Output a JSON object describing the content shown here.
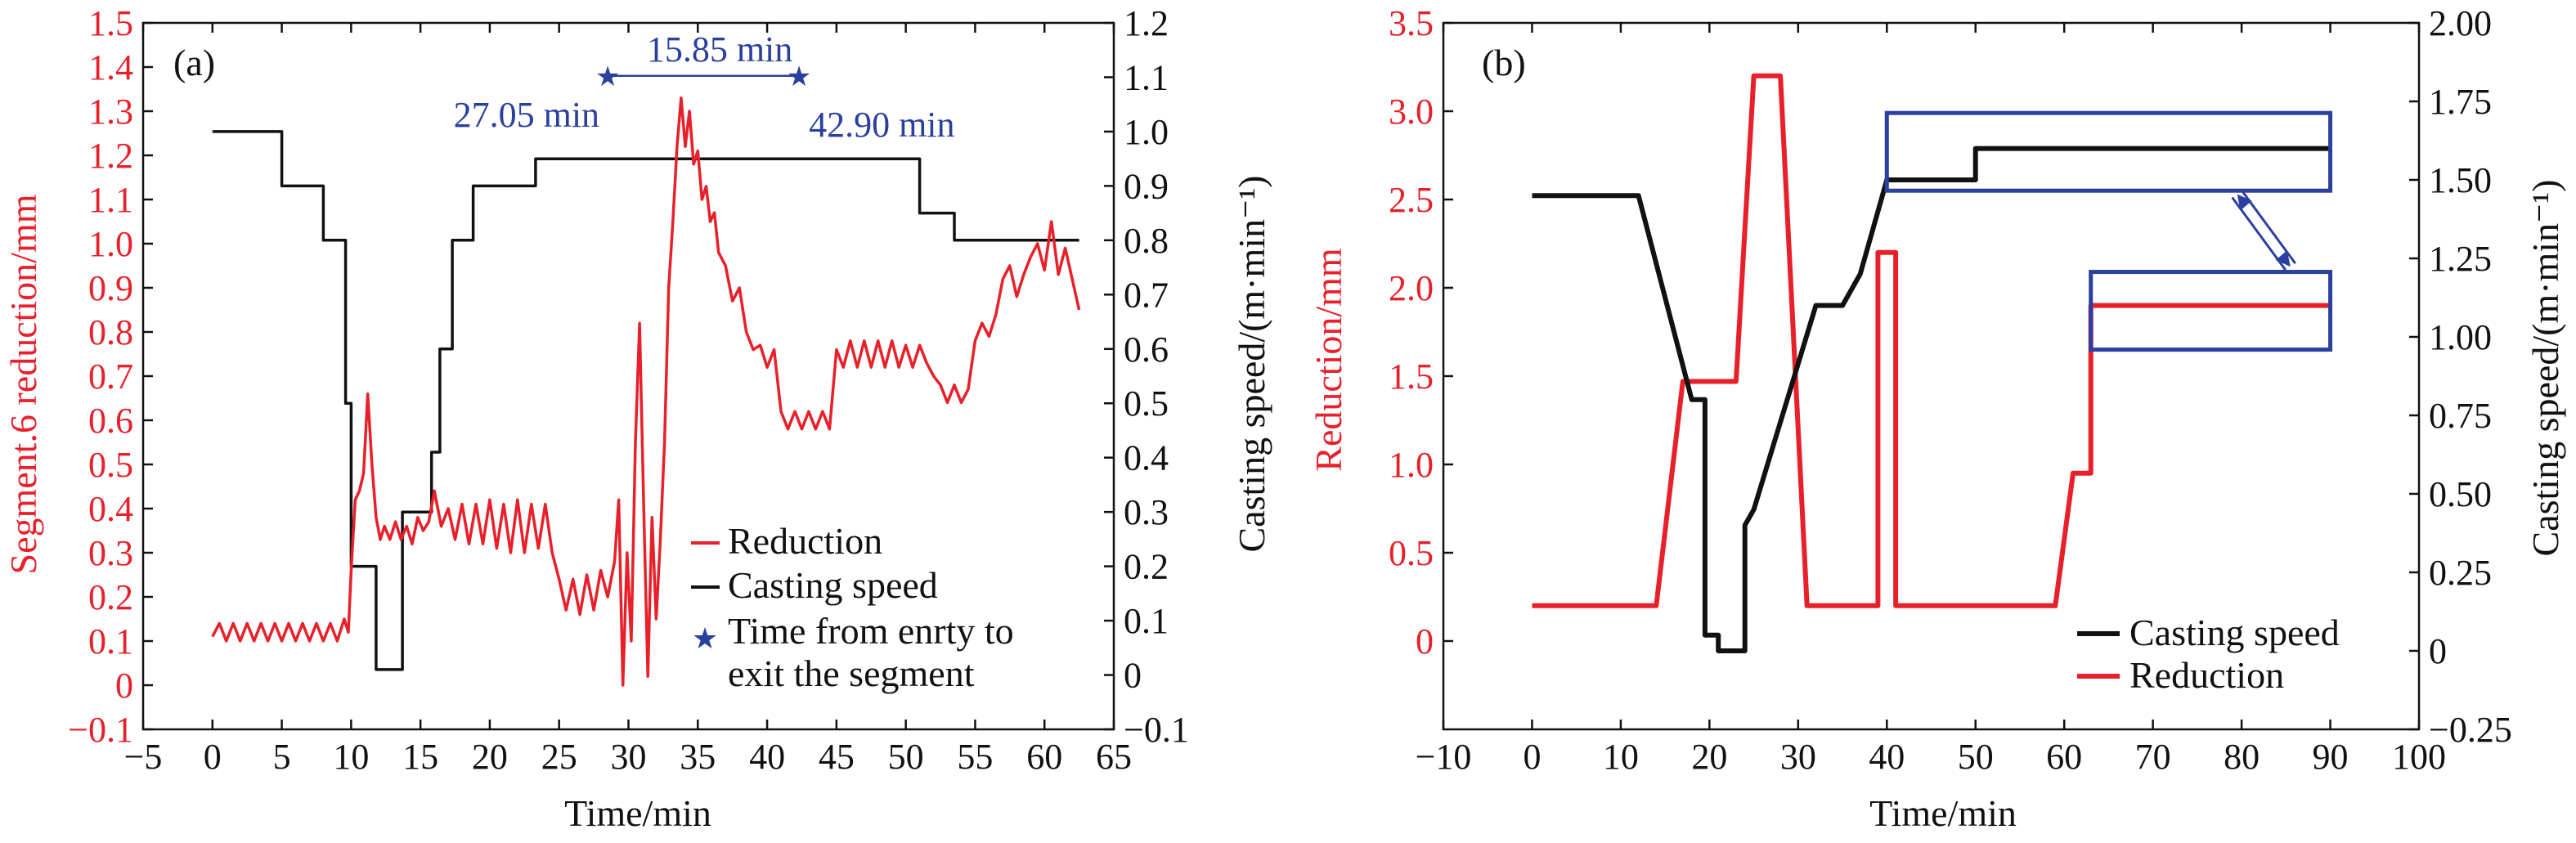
{
  "chart_data": [
    {
      "type": "line",
      "panel_label": "(a)",
      "xlabel": "Time/min",
      "ylabel_left": "Segment.6 reduction/mm",
      "ylabel_right": "Casting speed/(m·min⁻¹)",
      "xlim": [
        -5,
        65
      ],
      "ylim_left": [
        -0.1,
        1.5
      ],
      "ylim_right": [
        -0.1,
        1.2
      ],
      "xticks": [
        "−5",
        "0",
        "5",
        "10",
        "15",
        "20",
        "25",
        "30",
        "35",
        "40",
        "45",
        "50",
        "55",
        "60",
        "65"
      ],
      "yticks_left": [
        "−0.1",
        "0",
        "0.1",
        "0.2",
        "0.3",
        "0.4",
        "0.5",
        "0.6",
        "0.7",
        "0.8",
        "0.9",
        "1.0",
        "1.1",
        "1.2",
        "1.3",
        "1.4",
        "1.5"
      ],
      "yticks_right": [
        "−0.1",
        "0",
        "0.1",
        "0.2",
        "0.3",
        "0.4",
        "0.5",
        "0.6",
        "0.7",
        "0.8",
        "0.9",
        "1.0",
        "1.1",
        "1.2"
      ],
      "legend_position": "lower-right",
      "legend": [
        {
          "label": "Reduction",
          "color": "#e8202a",
          "marker": "line"
        },
        {
          "label": "Casting speed",
          "color": "#111111",
          "marker": "line"
        },
        {
          "label_lines": [
            "Time from enrty to",
            "exit the segment"
          ],
          "color": "#2b3f9e",
          "marker": "star"
        }
      ],
      "annotations": {
        "entry_label": "27.05 min",
        "exit_label": "42.90 min",
        "duration_label": "15.85 min",
        "entry_x": 28.5,
        "exit_x": 42.3,
        "star_y_left": 1.38
      },
      "series": [
        {
          "name": "Casting speed",
          "axis": "right",
          "color": "#111111",
          "step": true,
          "x": [
            0,
            5,
            5,
            8,
            8,
            9.6,
            9.6,
            10.0,
            10.0,
            11.8,
            11.8,
            13.7,
            13.7,
            15.8,
            15.8,
            16.4,
            16.4,
            17.3,
            17.3,
            18.8,
            18.8,
            23.3,
            23.3,
            29.2,
            29.2,
            51,
            51,
            53.5,
            53.5,
            62.5
          ],
          "y": [
            1.0,
            1.0,
            0.9,
            0.9,
            0.8,
            0.8,
            0.5,
            0.5,
            0.2,
            0.2,
            0.01,
            0.01,
            0.3,
            0.3,
            0.41,
            0.41,
            0.6,
            0.6,
            0.8,
            0.8,
            0.9,
            0.9,
            0.95,
            0.95,
            0.95,
            0.95,
            0.85,
            0.85,
            0.8,
            0.8
          ]
        },
        {
          "name": "Reduction",
          "axis": "left",
          "color": "#e8202a",
          "x": [
            0,
            0.5,
            1,
            1.5,
            2,
            2.5,
            3,
            3.5,
            4,
            4.5,
            5,
            5.5,
            6,
            6.5,
            7,
            7.5,
            8,
            8.5,
            9,
            9.5,
            9.8,
            10.0,
            10.3,
            10.6,
            10.9,
            11.2,
            11.5,
            11.8,
            12.1,
            12.4,
            12.8,
            13.2,
            13.6,
            14.0,
            14.4,
            14.8,
            15.2,
            15.6,
            16.0,
            16.5,
            17.0,
            17.5,
            18.0,
            18.5,
            19.0,
            19.5,
            20.0,
            20.5,
            21.0,
            21.5,
            22.0,
            22.5,
            23.0,
            23.5,
            24.0,
            24.5,
            25.0,
            25.5,
            26.0,
            26.5,
            27.0,
            27.5,
            28.0,
            28.5,
            29.0,
            29.3,
            29.6,
            29.9,
            30.2,
            30.5,
            30.8,
            31.1,
            31.4,
            31.7,
            32.0,
            32.3,
            32.6,
            32.9,
            33.2,
            33.5,
            33.8,
            34.1,
            34.4,
            34.7,
            35.0,
            35.3,
            35.6,
            35.9,
            36.2,
            36.5,
            37.0,
            37.5,
            38.0,
            38.5,
            39.0,
            39.5,
            40.0,
            40.5,
            41.0,
            41.5,
            42.0,
            42.5,
            43.0,
            43.5,
            44.0,
            44.5,
            45.0,
            45.5,
            46.0,
            46.5,
            47.0,
            47.5,
            48.0,
            48.5,
            49.0,
            49.5,
            50.0,
            50.5,
            51.0,
            51.5,
            52.0,
            52.5,
            53.0,
            53.5,
            54.0,
            54.5,
            55.0,
            55.5,
            56.0,
            56.5,
            57.0,
            57.5,
            58.0,
            58.5,
            59.0,
            59.5,
            60.0,
            60.5,
            61.0,
            61.5,
            62.0,
            62.5
          ],
          "y": [
            0.11,
            0.14,
            0.1,
            0.14,
            0.1,
            0.14,
            0.1,
            0.14,
            0.1,
            0.14,
            0.1,
            0.14,
            0.1,
            0.14,
            0.1,
            0.14,
            0.1,
            0.14,
            0.1,
            0.15,
            0.12,
            0.26,
            0.42,
            0.44,
            0.48,
            0.66,
            0.5,
            0.38,
            0.33,
            0.36,
            0.33,
            0.37,
            0.33,
            0.36,
            0.32,
            0.38,
            0.35,
            0.37,
            0.44,
            0.36,
            0.4,
            0.33,
            0.41,
            0.32,
            0.41,
            0.32,
            0.42,
            0.31,
            0.41,
            0.3,
            0.42,
            0.3,
            0.41,
            0.31,
            0.41,
            0.3,
            0.24,
            0.17,
            0.24,
            0.16,
            0.25,
            0.17,
            0.26,
            0.2,
            0.28,
            0.42,
            0.0,
            0.3,
            0.1,
            0.55,
            0.82,
            0.4,
            0.02,
            0.38,
            0.15,
            0.33,
            0.55,
            0.9,
            1.05,
            1.22,
            1.33,
            1.22,
            1.3,
            1.18,
            1.21,
            1.1,
            1.13,
            1.05,
            1.07,
            0.98,
            0.95,
            0.87,
            0.9,
            0.8,
            0.76,
            0.77,
            0.72,
            0.76,
            0.62,
            0.58,
            0.62,
            0.58,
            0.62,
            0.58,
            0.62,
            0.58,
            0.76,
            0.72,
            0.78,
            0.72,
            0.78,
            0.72,
            0.78,
            0.72,
            0.78,
            0.72,
            0.77,
            0.72,
            0.77,
            0.73,
            0.7,
            0.68,
            0.64,
            0.68,
            0.64,
            0.67,
            0.78,
            0.82,
            0.79,
            0.84,
            0.92,
            0.95,
            0.88,
            0.93,
            0.97,
            1.0,
            0.94,
            1.05,
            0.93,
            0.99,
            0.92,
            0.85
          ]
        }
      ]
    },
    {
      "type": "line",
      "panel_label": "(b)",
      "xlabel": "Time/min",
      "ylabel_left": "Reduction/mm",
      "ylabel_right": "Casting speed/(m·min⁻¹)",
      "xlim": [
        -10,
        100
      ],
      "ylim_left": [
        -0.5,
        3.5
      ],
      "ylim_right": [
        -0.25,
        2.0
      ],
      "xticks": [
        "−10",
        "0",
        "10",
        "20",
        "30",
        "40",
        "50",
        "60",
        "70",
        "80",
        "90",
        "100"
      ],
      "yticks_left": [
        "0",
        "0.5",
        "1.0",
        "1.5",
        "2.0",
        "2.5",
        "3.0",
        "3.5"
      ],
      "yticks_right": [
        "−0.25",
        "0",
        "0.25",
        "0.50",
        "0.75",
        "1.00",
        "1.25",
        "1.50",
        "1.75",
        "2.00"
      ],
      "legend_position": "lower-right",
      "legend": [
        {
          "label": "Casting speed",
          "color": "#111111",
          "marker": "line"
        },
        {
          "label": "Reduction",
          "color": "#e8202a",
          "marker": "line"
        }
      ],
      "zoom_boxes": [
        {
          "x_range": [
            40,
            90
          ],
          "y_range_left": [
            2.55,
            2.99
          ],
          "content_series": "Casting speed"
        },
        {
          "x_range": [
            63,
            90
          ],
          "y_range_left": [
            1.65,
            2.09
          ],
          "content_series": "Reduction"
        }
      ],
      "series": [
        {
          "name": "Reduction",
          "axis": "left",
          "color": "#e8202a",
          "x": [
            0,
            14,
            17,
            23,
            25,
            28,
            31,
            39,
            39,
            41,
            41,
            59,
            61,
            61,
            63,
            63,
            90
          ],
          "y": [
            0.2,
            0.2,
            1.47,
            1.47,
            3.2,
            3.2,
            0.2,
            0.2,
            2.2,
            2.2,
            0.2,
            0.2,
            0.95,
            0.95,
            0.95,
            1.9,
            1.9
          ]
        },
        {
          "name": "Casting speed",
          "axis": "right",
          "color": "#111111",
          "x": [
            0,
            12,
            18,
            19,
            19.5,
            19.5,
            21,
            21,
            24,
            24,
            25,
            32,
            35,
            37,
            40,
            40,
            50,
            50,
            90
          ],
          "y": [
            1.45,
            1.45,
            0.8,
            0.8,
            0.8,
            0.05,
            0.05,
            0.0,
            0.0,
            0.4,
            0.45,
            1.1,
            1.1,
            1.2,
            1.5,
            1.5,
            1.5,
            1.6,
            1.6
          ]
        }
      ]
    }
  ]
}
